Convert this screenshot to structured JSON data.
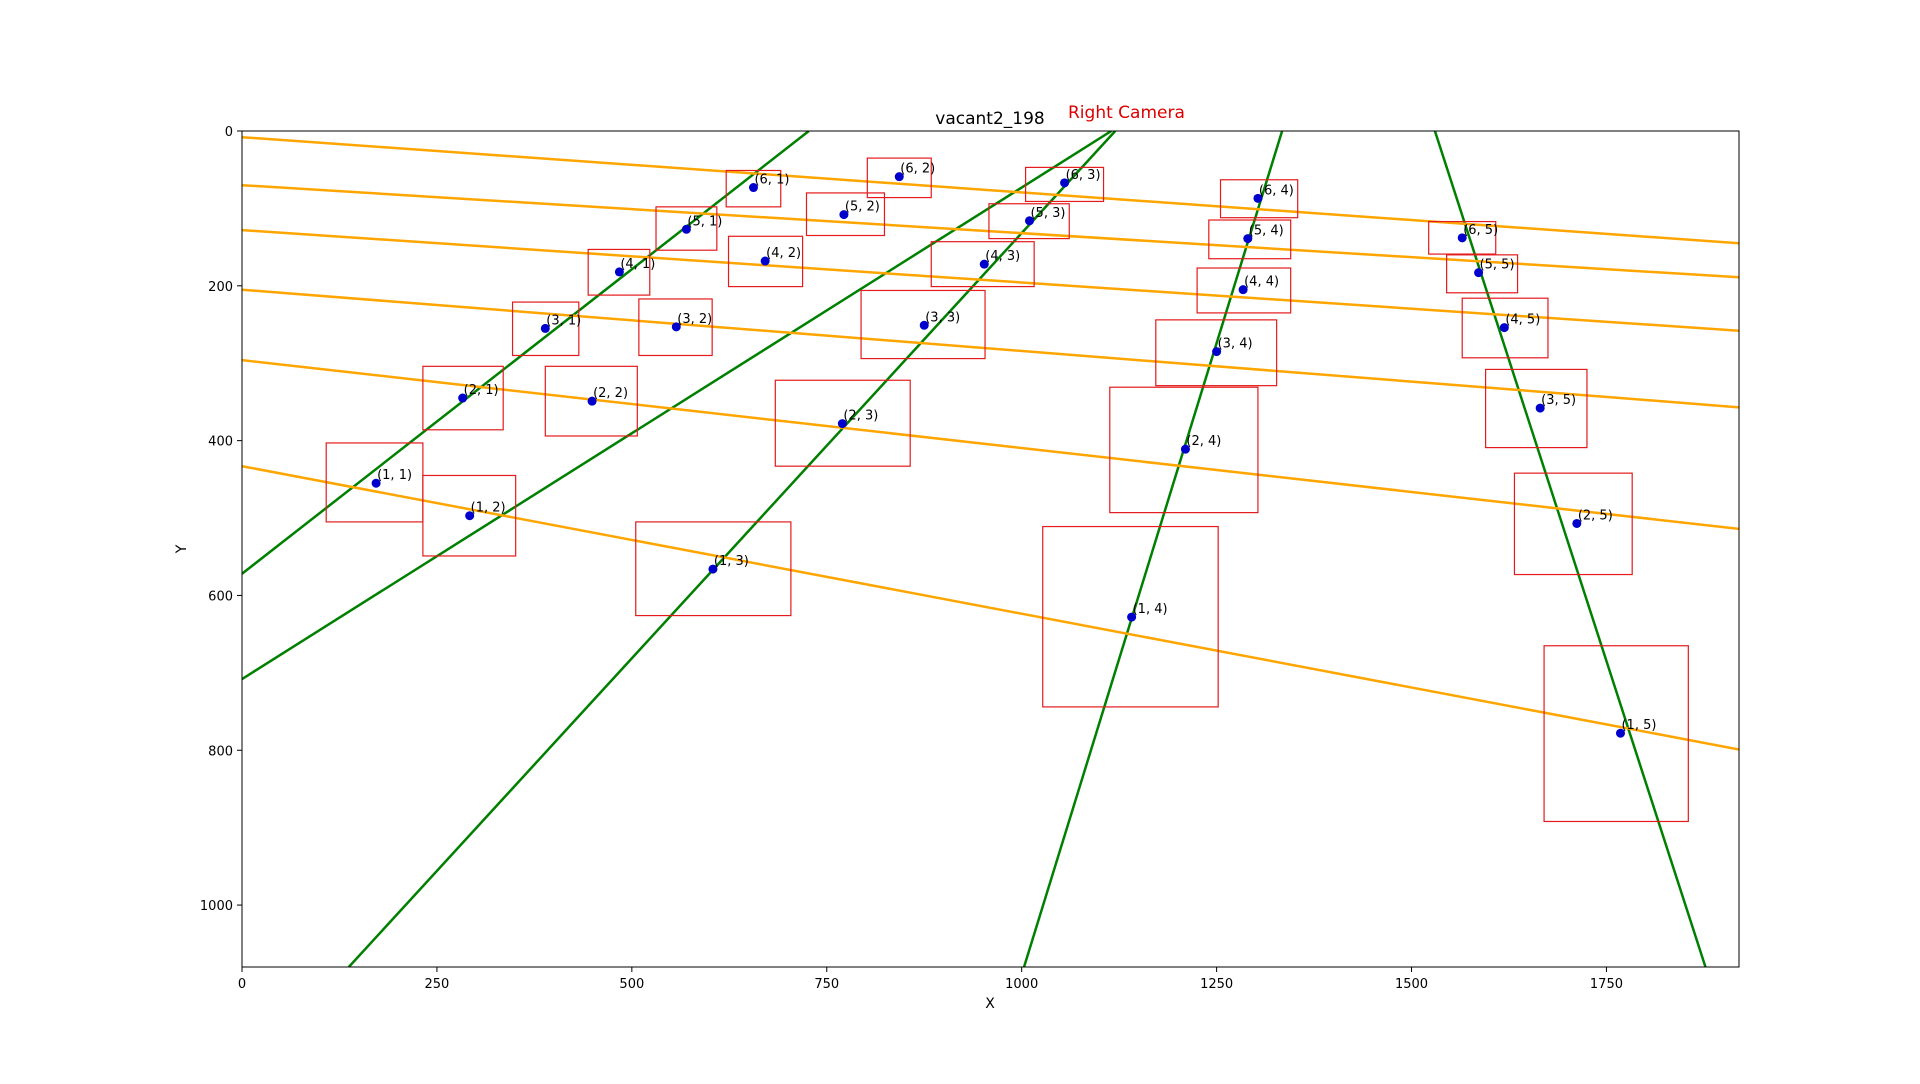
{
  "chart_data": {
    "type": "scatter",
    "title": "vacant2_198",
    "subtitle": "Right Camera",
    "xlabel": "X",
    "ylabel": "Y",
    "xlim": [
      0,
      1920
    ],
    "ylim": [
      1080,
      0
    ],
    "y_inverted": true,
    "x_ticks": [
      0,
      250,
      500,
      750,
      1000,
      1250,
      1500,
      1750
    ],
    "y_ticks": [
      0,
      200,
      400,
      600,
      800,
      1000
    ],
    "grid": false,
    "colors": {
      "points": "#0000cc",
      "boxes": "#e41a1c",
      "row_lines": "#ffa500",
      "column_lines": "#008000",
      "subtitle": "#dd0000",
      "axes": "#000000"
    },
    "points": [
      {
        "label": "(1, 1)",
        "x": 172,
        "y": 455
      },
      {
        "label": "(2, 1)",
        "x": 283,
        "y": 345
      },
      {
        "label": "(3, 1)",
        "x": 389,
        "y": 255
      },
      {
        "label": "(4, 1)",
        "x": 484,
        "y": 182
      },
      {
        "label": "(5, 1)",
        "x": 570,
        "y": 127
      },
      {
        "label": "(6, 1)",
        "x": 656,
        "y": 73
      },
      {
        "label": "(1, 2)",
        "x": 292,
        "y": 497
      },
      {
        "label": "(2, 2)",
        "x": 449,
        "y": 349
      },
      {
        "label": "(3, 2)",
        "x": 557,
        "y": 253
      },
      {
        "label": "(4, 2)",
        "x": 671,
        "y": 168
      },
      {
        "label": "(5, 2)",
        "x": 772,
        "y": 108
      },
      {
        "label": "(6, 2)",
        "x": 843,
        "y": 59
      },
      {
        "label": "(1, 3)",
        "x": 604,
        "y": 566
      },
      {
        "label": "(2, 3)",
        "x": 770,
        "y": 378
      },
      {
        "label": "(3, 3)",
        "x": 875,
        "y": 251
      },
      {
        "label": "(4, 3)",
        "x": 952,
        "y": 172
      },
      {
        "label": "(5, 3)",
        "x": 1010,
        "y": 116
      },
      {
        "label": "(6, 3)",
        "x": 1055,
        "y": 67
      },
      {
        "label": "(1, 4)",
        "x": 1141,
        "y": 628
      },
      {
        "label": "(2, 4)",
        "x": 1210,
        "y": 411
      },
      {
        "label": "(3, 4)",
        "x": 1250,
        "y": 285
      },
      {
        "label": "(4, 4)",
        "x": 1284,
        "y": 205
      },
      {
        "label": "(5, 4)",
        "x": 1290,
        "y": 139
      },
      {
        "label": "(6, 4)",
        "x": 1303,
        "y": 87
      },
      {
        "label": "(1, 5)",
        "x": 1768,
        "y": 778
      },
      {
        "label": "(2, 5)",
        "x": 1712,
        "y": 507
      },
      {
        "label": "(3, 5)",
        "x": 1665,
        "y": 358
      },
      {
        "label": "(4, 5)",
        "x": 1619,
        "y": 254
      },
      {
        "label": "(5, 5)",
        "x": 1586,
        "y": 183
      },
      {
        "label": "(6, 5)",
        "x": 1565,
        "y": 138
      }
    ],
    "boxes": [
      {
        "x0": 108,
        "y0": 403,
        "x1": 232,
        "y1": 505
      },
      {
        "x0": 232,
        "y0": 304,
        "x1": 335,
        "y1": 386
      },
      {
        "x0": 347,
        "y0": 221,
        "x1": 432,
        "y1": 290
      },
      {
        "x0": 444,
        "y0": 153,
        "x1": 523,
        "y1": 212
      },
      {
        "x0": 531,
        "y0": 98,
        "x1": 609,
        "y1": 154
      },
      {
        "x0": 621,
        "y0": 51,
        "x1": 691,
        "y1": 98
      },
      {
        "x0": 232,
        "y0": 445,
        "x1": 351,
        "y1": 549
      },
      {
        "x0": 389,
        "y0": 304,
        "x1": 507,
        "y1": 394
      },
      {
        "x0": 509,
        "y0": 217,
        "x1": 603,
        "y1": 290
      },
      {
        "x0": 624,
        "y0": 136,
        "x1": 719,
        "y1": 201
      },
      {
        "x0": 724,
        "y0": 80,
        "x1": 824,
        "y1": 135
      },
      {
        "x0": 802,
        "y0": 35,
        "x1": 884,
        "y1": 86
      },
      {
        "x0": 505,
        "y0": 505,
        "x1": 704,
        "y1": 626
      },
      {
        "x0": 684,
        "y0": 322,
        "x1": 857,
        "y1": 433
      },
      {
        "x0": 794,
        "y0": 206,
        "x1": 953,
        "y1": 294
      },
      {
        "x0": 884,
        "y0": 143,
        "x1": 1016,
        "y1": 201
      },
      {
        "x0": 958,
        "y0": 94,
        "x1": 1061,
        "y1": 139
      },
      {
        "x0": 1005,
        "y0": 47,
        "x1": 1105,
        "y1": 91
      },
      {
        "x0": 1027,
        "y0": 511,
        "x1": 1252,
        "y1": 744
      },
      {
        "x0": 1113,
        "y0": 331,
        "x1": 1303,
        "y1": 493
      },
      {
        "x0": 1172,
        "y0": 244,
        "x1": 1327,
        "y1": 329
      },
      {
        "x0": 1225,
        "y0": 177,
        "x1": 1345,
        "y1": 235
      },
      {
        "x0": 1240,
        "y0": 115,
        "x1": 1345,
        "y1": 165
      },
      {
        "x0": 1255,
        "y0": 63,
        "x1": 1354,
        "y1": 112
      },
      {
        "x0": 1670,
        "y0": 665,
        "x1": 1855,
        "y1": 892
      },
      {
        "x0": 1632,
        "y0": 442,
        "x1": 1783,
        "y1": 573
      },
      {
        "x0": 1595,
        "y0": 308,
        "x1": 1725,
        "y1": 409
      },
      {
        "x0": 1565,
        "y0": 216,
        "x1": 1675,
        "y1": 293
      },
      {
        "x0": 1545,
        "y0": 160,
        "x1": 1636,
        "y1": 209
      },
      {
        "x0": 1522,
        "y0": 117,
        "x1": 1608,
        "y1": 159
      }
    ],
    "row_lines": [
      {
        "x0": 0,
        "y0": 433,
        "x1": 1920,
        "y1": 799
      },
      {
        "x0": 0,
        "y0": 296,
        "x1": 1920,
        "y1": 514
      },
      {
        "x0": 0,
        "y0": 205,
        "x1": 1920,
        "y1": 357
      },
      {
        "x0": 0,
        "y0": 128,
        "x1": 1920,
        "y1": 258
      },
      {
        "x0": 0,
        "y0": 70,
        "x1": 1920,
        "y1": 189
      },
      {
        "x0": 0,
        "y0": 8,
        "x1": 1920,
        "y1": 145
      }
    ],
    "column_lines": [
      {
        "x0": 0,
        "y0": 572,
        "x1": 727,
        "y1": 0
      },
      {
        "x0": 0,
        "y0": 708,
        "x1": 1115,
        "y1": 0
      },
      {
        "x0": 137,
        "y0": 1080,
        "x1": 1120,
        "y1": 0
      },
      {
        "x0": 1003,
        "y0": 1080,
        "x1": 1334,
        "y1": 0
      },
      {
        "x0": 1530,
        "y0": 0,
        "x1": 1877,
        "y1": 1080
      }
    ]
  }
}
